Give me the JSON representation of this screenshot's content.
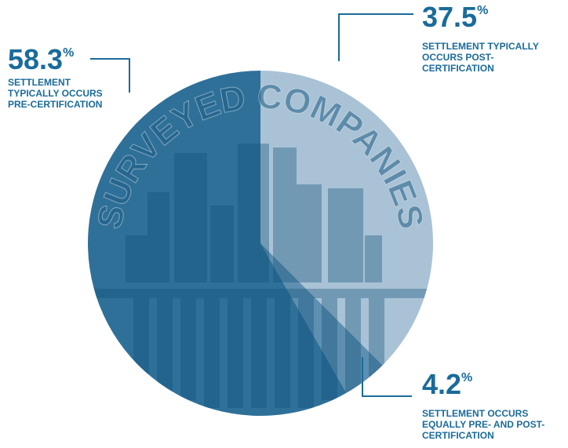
{
  "chart_data": {
    "type": "pie",
    "center_label": "SURVEYED COMPANIES",
    "categories": [
      "SETTLEMENT TYPICALLY OCCURS POST-CERTIFICATION",
      "SETTLEMENT OCCURS EQUALLY PRE- AND POST-CERTIFICATION",
      "SETTLEMENT TYPICALLY OCCURS PRE-CERTIFICATION"
    ],
    "values": [
      37.5,
      4.2,
      58.3
    ],
    "value_labels": [
      "37.5%",
      "4.2%",
      "58.3%"
    ],
    "colors": [
      "#a9c2d5",
      "#5f8fb0",
      "#2f7099"
    ]
  }
}
